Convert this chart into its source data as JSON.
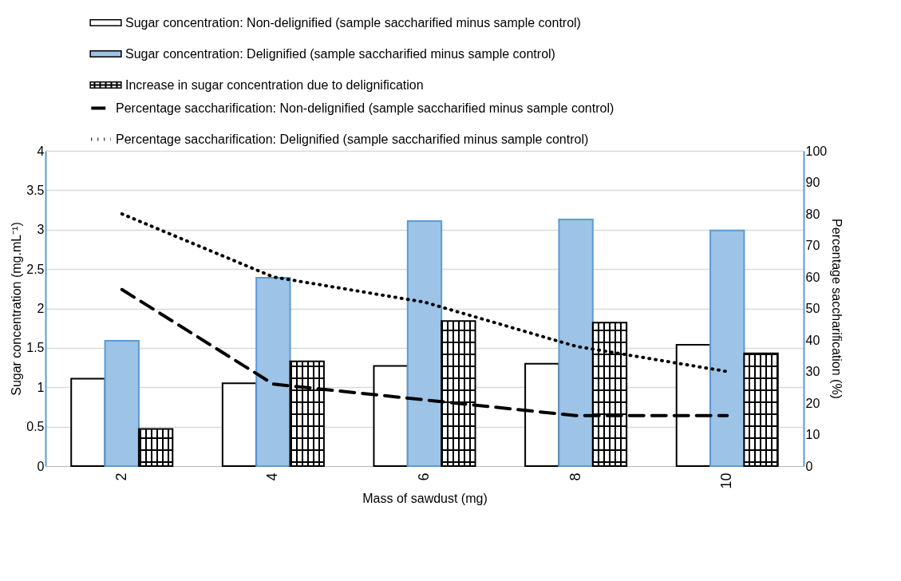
{
  "chart_data": {
    "type": "bar",
    "categories": [
      "2",
      "4",
      "6",
      "8",
      "10"
    ],
    "xlabel": "Mass of sawdust (mg)",
    "ylabel": "Sugar concentration (mg.mL⁻¹)",
    "y2label": "Percentage saccharification (%)",
    "ylim": [
      0,
      4
    ],
    "yticks": [
      0,
      0.5,
      1,
      1.5,
      2,
      2.5,
      3,
      3.5,
      4
    ],
    "y2lim": [
      0,
      100
    ],
    "y2ticks": [
      0,
      10,
      20,
      30,
      40,
      50,
      60,
      70,
      80,
      90,
      100
    ],
    "grid": "y",
    "legend": "top",
    "series": [
      {
        "name": "Sugar concentration: Non-delignified (sample saccharified minus sample control)",
        "color": "#ffffff",
        "values": [
          1.11,
          1.05,
          1.27,
          1.3,
          1.54
        ]
      },
      {
        "name": "Sugar concentration: Delignified (sample saccharified minus sample control)",
        "color": "#9dc3e6",
        "values": [
          1.59,
          2.39,
          3.11,
          3.13,
          2.99
        ]
      },
      {
        "name": "Increase in sugar concentration due to delignification",
        "color": "#000000",
        "values": [
          0.47,
          1.33,
          1.84,
          1.82,
          1.43
        ]
      },
      {
        "name": "Percentage saccharification: Non-delignified (sample saccharified minus sample control)",
        "type": "line",
        "axis": "y2",
        "line_style": "dashed",
        "color": "#000000",
        "values": [
          56,
          26,
          21,
          16,
          16
        ]
      },
      {
        "name": "Percentage saccharification: Delignified (sample saccharified minus sample control)",
        "type": "line",
        "axis": "y2",
        "line_style": "dotted",
        "color": "#000000",
        "values": [
          80,
          60,
          52,
          38,
          30
        ]
      }
    ]
  }
}
